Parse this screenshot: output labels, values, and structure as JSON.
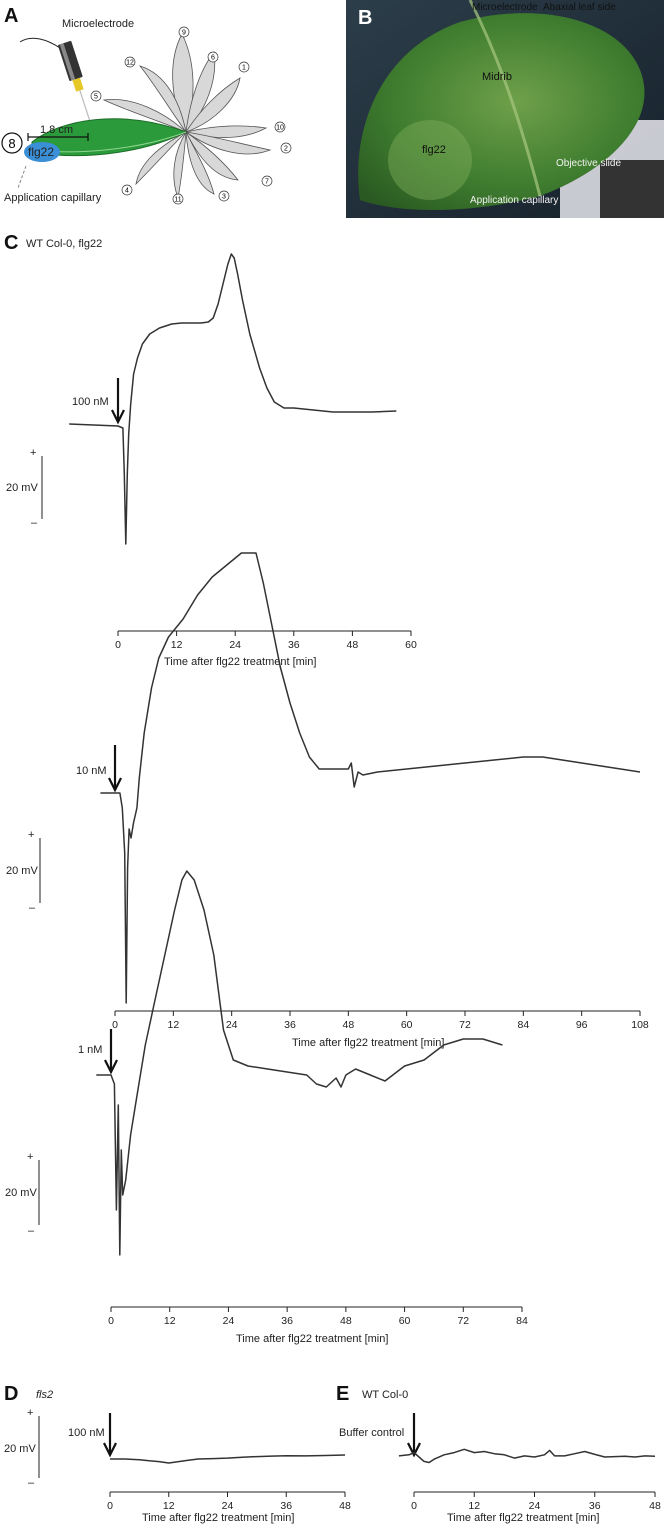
{
  "panels": {
    "a": "A",
    "b": "B",
    "c": "C",
    "d": "D",
    "e": "E"
  },
  "panel_a": {
    "microelectrode": "Microelectrode",
    "distance": "1.8 cm",
    "leaf_number": "8",
    "flg22": "flg22",
    "capillary": "Application capillary",
    "leaf_numbers": [
      "1",
      "2",
      "3",
      "4",
      "5",
      "6",
      "7",
      "9",
      "10",
      "11",
      "12"
    ]
  },
  "panel_b": {
    "microelectrode": "Microelectrode",
    "abaxial": "Abaxial leaf side",
    "midrib": "Midrib",
    "flg22": "flg22",
    "objective_slide": "Objective slide",
    "capillary": "Application capillary"
  },
  "panel_c": {
    "title": "WT Col-0, flg22"
  },
  "scale_bar": {
    "label": "20 mV",
    "plus": "+",
    "minus": "–"
  },
  "panel_d": {
    "title": "fls2"
  },
  "panel_e": {
    "title": "WT Col-0"
  },
  "colors": {
    "leaf_green": "#2a9a3a",
    "flg22_blue": "#3a8fd6",
    "trace": "#333333"
  },
  "chart_data": [
    {
      "id": "c1",
      "type": "line",
      "treatment": "100 nM",
      "xlabel": "Time after flg22 treatment [min]",
      "xlim": [
        0,
        60
      ],
      "xticks": [
        0,
        12,
        24,
        36,
        48,
        60
      ],
      "ylabel": "",
      "y_unit": "mV",
      "x": [
        -10,
        0,
        0.5,
        1.0,
        1.3,
        1.6,
        1.9,
        2.2,
        2.6,
        3.2,
        4.0,
        5.0,
        6.5,
        8.5,
        11,
        13,
        15,
        17,
        18.5,
        19.5,
        20.5,
        21.5,
        22.5,
        23.2,
        23.8,
        24.5,
        25.5,
        27,
        29,
        30.5,
        32,
        34,
        36,
        40,
        44,
        48,
        52,
        57
      ],
      "y": [
        0,
        -1,
        -1.5,
        -2,
        -25,
        -60,
        -25,
        -5,
        10,
        25,
        33,
        40,
        45,
        48,
        50,
        50.5,
        50.5,
        50.5,
        51,
        53,
        60,
        70,
        80,
        85,
        83,
        75,
        62,
        45,
        28,
        18,
        11,
        8,
        8,
        7,
        6,
        6,
        6,
        6.5
      ]
    },
    {
      "id": "c2",
      "type": "line",
      "treatment": "10 nM",
      "xlabel": "Time after flg22 treatment [min]",
      "xlim": [
        0,
        108
      ],
      "xticks": [
        0,
        12,
        24,
        36,
        48,
        60,
        72,
        84,
        96,
        108
      ],
      "ylabel": "",
      "y_unit": "mV",
      "x": [
        -3,
        0,
        1,
        1.5,
        2,
        2.3,
        2.6,
        2.9,
        3.3,
        3.8,
        4.5,
        5,
        6,
        7.5,
        9,
        11,
        14,
        17,
        20,
        23,
        26,
        29,
        30.5,
        32,
        34,
        36,
        38,
        40,
        42,
        44,
        46,
        48,
        48.6,
        49.2,
        50,
        51,
        54,
        60,
        66,
        72,
        78,
        84,
        88,
        92,
        96,
        100,
        104,
        108
      ],
      "y": [
        0,
        0,
        0,
        -5,
        -20,
        -70,
        -25,
        -12,
        -15,
        -10,
        -5,
        5,
        20,
        35,
        45,
        52,
        58,
        66,
        72,
        76,
        80,
        80,
        70,
        58,
        42,
        30,
        20,
        12,
        8,
        8,
        8,
        8,
        10,
        2,
        7,
        6,
        7,
        8,
        9,
        10,
        11,
        12,
        12,
        11,
        10,
        9,
        8,
        7
      ]
    },
    {
      "id": "c3",
      "type": "line",
      "treatment": "1 nM",
      "xlabel": "Time after flg22 treatment [min]",
      "xlim": [
        0,
        84
      ],
      "xticks": [
        0,
        12,
        24,
        36,
        48,
        60,
        72,
        84
      ],
      "ylabel": "",
      "y_unit": "mV",
      "x": [
        -3,
        0,
        0.7,
        1.1,
        1.5,
        1.8,
        2.1,
        2.4,
        3,
        4,
        5.5,
        7,
        9,
        11,
        13,
        14.5,
        15.5,
        17,
        19,
        21,
        23,
        25,
        28,
        32,
        36,
        40,
        42,
        44,
        46,
        47,
        48,
        50,
        53,
        56,
        60,
        64,
        68,
        72,
        76,
        80
      ],
      "y": [
        0,
        0,
        -3,
        -45,
        -10,
        -60,
        -25,
        -40,
        -35,
        -20,
        -5,
        10,
        25,
        40,
        55,
        65,
        68,
        65,
        55,
        40,
        15,
        5,
        3,
        2,
        1,
        0,
        -3,
        -4,
        -1,
        -4,
        0,
        2,
        0,
        -2,
        3,
        5,
        10,
        12,
        12,
        10
      ]
    },
    {
      "id": "d",
      "type": "line",
      "treatment": "100 nM",
      "xlabel": "Time after flg22 treatment [min]",
      "xlim": [
        0,
        48
      ],
      "xticks": [
        0,
        12,
        24,
        36,
        48
      ],
      "ylabel": "",
      "y_unit": "mV",
      "x": [
        0,
        3,
        6,
        8,
        10,
        12,
        14,
        16,
        18,
        21,
        24,
        27,
        30,
        33,
        36,
        40,
        44,
        48
      ],
      "y": [
        0,
        0,
        -0.3,
        -0.8,
        -1.2,
        -1.8,
        -1.2,
        -0.6,
        0,
        0.2,
        0.4,
        0.8,
        1.1,
        1.3,
        1.5,
        1.4,
        1.6,
        1.8
      ]
    },
    {
      "id": "e",
      "type": "line",
      "treatment": "Buffer control",
      "xlabel": "Time after flg22 treatment [min]",
      "xlim": [
        0,
        48
      ],
      "xticks": [
        0,
        12,
        24,
        36,
        48
      ],
      "ylabel": "",
      "y_unit": "mV",
      "x": [
        -3,
        -1,
        0,
        1,
        2,
        3,
        4,
        6,
        8,
        10,
        12,
        14,
        16,
        18,
        20,
        22,
        24,
        26,
        27,
        28,
        30,
        32,
        34,
        36,
        38,
        40,
        42,
        44,
        46,
        48
      ],
      "y": [
        0.5,
        1,
        2,
        0,
        -2,
        -2.5,
        -1,
        1,
        2,
        3.5,
        2,
        2.5,
        1.5,
        1,
        -0.5,
        0.5,
        0,
        1,
        3,
        0.5,
        0.5,
        1.5,
        2.5,
        1.2,
        0,
        0.2,
        0.3,
        0,
        0.5,
        0.3
      ]
    }
  ]
}
